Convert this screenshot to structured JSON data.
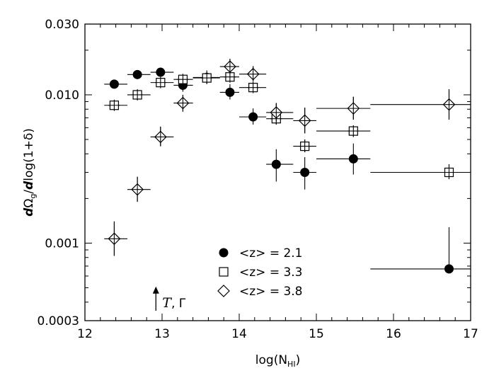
{
  "chart_data": {
    "type": "scatter",
    "xlabel_main": "log(N",
    "xlabel_sub": "HI",
    "xlabel_close": ")",
    "ylabel_parts": {
      "d1": "d",
      "omega": "Ω",
      "omega_sub": "g",
      "slash": "/",
      "d2": "d",
      "rest": "log(1+δ)"
    },
    "xlim": [
      12,
      17
    ],
    "ylim": [
      0.0003,
      0.03
    ],
    "yscale": "log",
    "x_ticks": [
      "12",
      "13",
      "14",
      "15",
      "16",
      "17"
    ],
    "y_ticks": [
      "0.0003",
      "0.001",
      "0.010",
      "0.030"
    ],
    "y_tick_values": [
      0.0003,
      0.001,
      0.01,
      0.03
    ],
    "legend": [
      {
        "label": "<z> = 2.1",
        "marker": "circle"
      },
      {
        "label": "<z> = 3.3",
        "marker": "square"
      },
      {
        "label": "<z> = 3.8",
        "marker": "diamond"
      }
    ],
    "annotation": {
      "text_T": "T",
      "text_rest": ", Γ",
      "x": 12.92,
      "y_bottom": 0.00035,
      "y_top": 0.00051
    },
    "series": [
      {
        "name": "<z> = 2.1",
        "marker": "circle",
        "points": [
          {
            "x": 12.38,
            "y": 0.0118,
            "xerr": [
              12.25,
              12.55
            ],
            "yerr": [
              0.0118,
              0.0118
            ]
          },
          {
            "x": 12.68,
            "y": 0.0137,
            "xerr": [
              12.55,
              12.85
            ],
            "yerr": [
              0.0137,
              0.0137
            ]
          },
          {
            "x": 12.98,
            "y": 0.0142,
            "xerr": [
              12.85,
              13.15
            ],
            "yerr": [
              0.0142,
              0.0142
            ]
          },
          {
            "x": 13.27,
            "y": 0.0116,
            "xerr": [
              13.15,
              13.4
            ],
            "yerr": [
              0.0105,
              0.0128
            ]
          },
          {
            "x": 13.58,
            "y": 0.0131,
            "xerr": [
              13.4,
              13.75
            ],
            "yerr": [
              0.0118,
              0.0146
            ]
          },
          {
            "x": 13.88,
            "y": 0.0104,
            "xerr": [
              13.75,
              14.0
            ],
            "yerr": [
              0.0093,
              0.0118
            ]
          },
          {
            "x": 14.18,
            "y": 0.0071,
            "xerr": [
              14.0,
              14.35
            ],
            "yerr": [
              0.0063,
              0.0081
            ]
          },
          {
            "x": 14.48,
            "y": 0.0034,
            "xerr": [
              14.35,
              14.7
            ],
            "yerr": [
              0.0026,
              0.0043
            ]
          },
          {
            "x": 14.85,
            "y": 0.003,
            "xerr": [
              14.7,
              15.0
            ],
            "yerr": [
              0.0023,
              0.0038
            ]
          },
          {
            "x": 15.48,
            "y": 0.0037,
            "xerr": [
              15.0,
              15.7
            ],
            "yerr": [
              0.0029,
              0.0047
            ]
          },
          {
            "x": 16.72,
            "y": 0.00067,
            "xerr": [
              15.7,
              17.0
            ],
            "yerr": [
              0.00067,
              0.00128
            ]
          }
        ]
      },
      {
        "name": "<z> = 3.3",
        "marker": "square",
        "points": [
          {
            "x": 12.38,
            "y": 0.0085,
            "xerr": [
              12.25,
              12.55
            ],
            "yerr": [
              0.0085,
              0.0085
            ]
          },
          {
            "x": 12.68,
            "y": 0.01,
            "xerr": [
              12.55,
              12.85
            ],
            "yerr": [
              0.01,
              0.01
            ]
          },
          {
            "x": 12.98,
            "y": 0.0121,
            "xerr": [
              12.85,
              13.15
            ],
            "yerr": [
              0.0121,
              0.0121
            ]
          },
          {
            "x": 13.27,
            "y": 0.0127,
            "xerr": [
              13.15,
              13.4
            ],
            "yerr": [
              0.0127,
              0.0127
            ]
          },
          {
            "x": 13.58,
            "y": 0.013,
            "xerr": [
              13.4,
              13.75
            ],
            "yerr": [
              0.0123,
              0.0137
            ]
          },
          {
            "x": 13.88,
            "y": 0.0132,
            "xerr": [
              13.75,
              14.0
            ],
            "yerr": [
              0.0125,
              0.0139
            ]
          },
          {
            "x": 14.18,
            "y": 0.0112,
            "xerr": [
              14.0,
              14.35
            ],
            "yerr": [
              0.0106,
              0.0118
            ]
          },
          {
            "x": 14.48,
            "y": 0.0069,
            "xerr": [
              14.35,
              14.7
            ],
            "yerr": [
              0.0063,
              0.0075
            ]
          },
          {
            "x": 14.85,
            "y": 0.0045,
            "xerr": [
              14.7,
              15.0
            ],
            "yerr": [
              0.0041,
              0.005
            ]
          },
          {
            "x": 15.48,
            "y": 0.0057,
            "xerr": [
              15.0,
              15.7
            ],
            "yerr": [
              0.0052,
              0.0062
            ]
          },
          {
            "x": 16.72,
            "y": 0.003,
            "xerr": [
              15.7,
              17.0
            ],
            "yerr": [
              0.0027,
              0.0034
            ]
          }
        ]
      },
      {
        "name": "<z> = 3.8",
        "marker": "diamond",
        "points": [
          {
            "x": 12.38,
            "y": 0.00107,
            "xerr": [
              12.25,
              12.55
            ],
            "yerr": [
              0.00082,
              0.0014
            ]
          },
          {
            "x": 12.68,
            "y": 0.0023,
            "xerr": [
              12.55,
              12.85
            ],
            "yerr": [
              0.0019,
              0.0028
            ]
          },
          {
            "x": 12.98,
            "y": 0.0052,
            "xerr": [
              12.85,
              13.15
            ],
            "yerr": [
              0.0045,
              0.0061
            ]
          },
          {
            "x": 13.27,
            "y": 0.0088,
            "xerr": [
              13.15,
              13.4
            ],
            "yerr": [
              0.0077,
              0.01
            ]
          },
          {
            "x": 13.88,
            "y": 0.0155,
            "xerr": [
              13.75,
              14.0
            ],
            "yerr": [
              0.0138,
              0.0175
            ]
          },
          {
            "x": 14.18,
            "y": 0.0138,
            "xerr": [
              14.0,
              14.35
            ],
            "yerr": [
              0.0123,
              0.0156
            ]
          },
          {
            "x": 14.48,
            "y": 0.0076,
            "xerr": [
              14.35,
              14.7
            ],
            "yerr": [
              0.0066,
              0.0088
            ]
          },
          {
            "x": 14.85,
            "y": 0.0067,
            "xerr": [
              14.7,
              15.0
            ],
            "yerr": [
              0.0055,
              0.0082
            ]
          },
          {
            "x": 15.48,
            "y": 0.0081,
            "xerr": [
              15.0,
              15.7
            ],
            "yerr": [
              0.0068,
              0.0097
            ]
          },
          {
            "x": 16.72,
            "y": 0.0086,
            "xerr": [
              15.7,
              17.0
            ],
            "yerr": [
              0.0068,
              0.0109
            ]
          }
        ]
      }
    ]
  }
}
